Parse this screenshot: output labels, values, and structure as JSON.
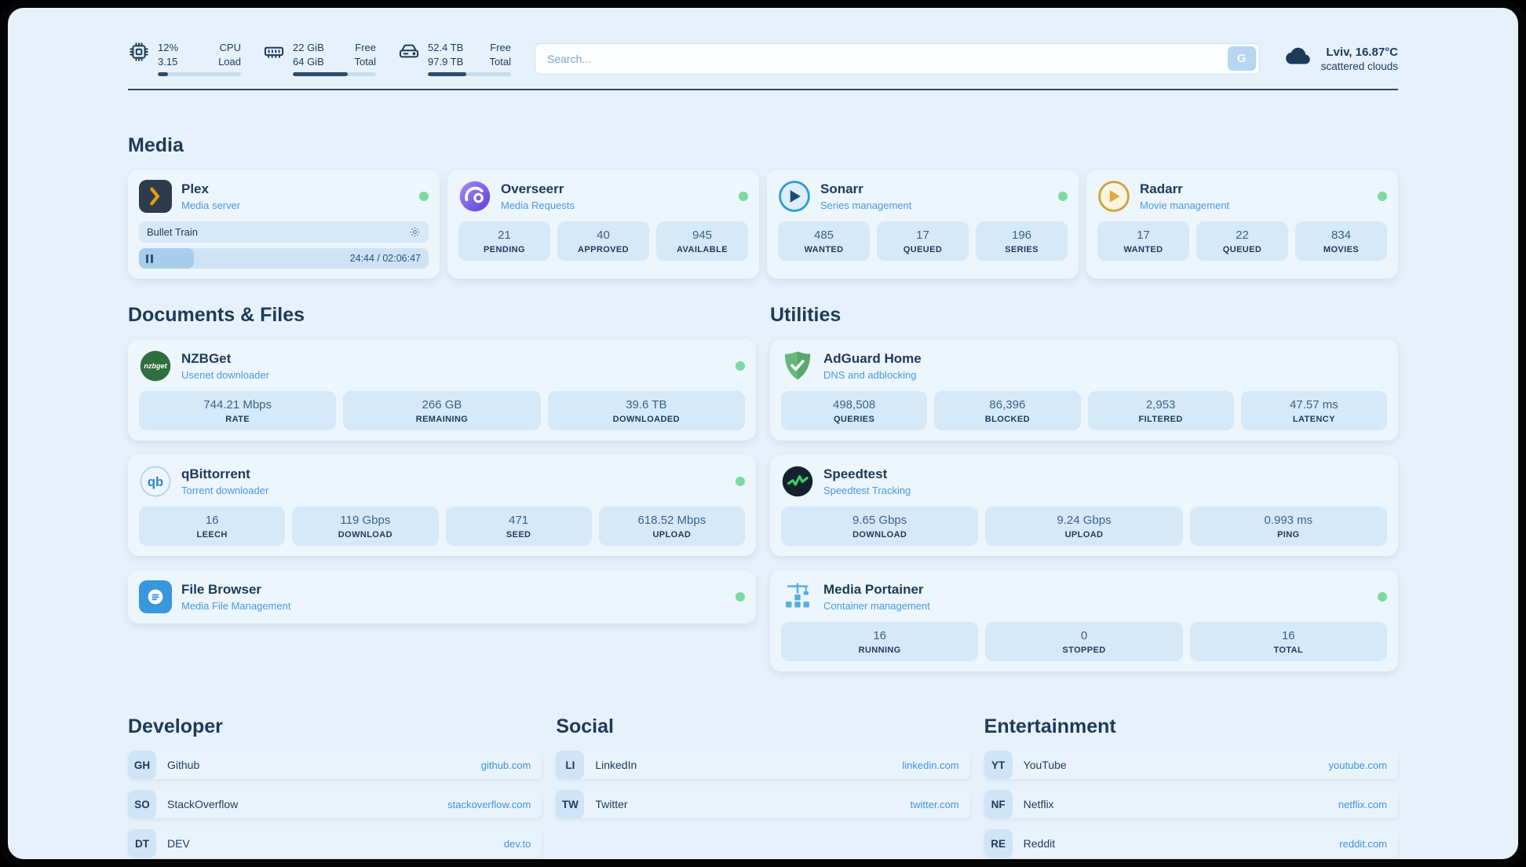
{
  "topbar": {
    "stats": [
      {
        "icon": "cpu",
        "values": [
          "12%",
          "3.15"
        ],
        "labels": [
          "CPU",
          "Load"
        ],
        "progress": 12
      },
      {
        "icon": "ram",
        "values": [
          "22 GiB",
          "64 GiB"
        ],
        "labels": [
          "Free",
          "Total"
        ],
        "progress": 66
      },
      {
        "icon": "disk",
        "values": [
          "52.4 TB",
          "97.9 TB"
        ],
        "labels": [
          "Free",
          "Total"
        ],
        "progress": 46
      }
    ],
    "search": {
      "placeholder": "Search...",
      "button_label": "G"
    },
    "weather": {
      "location": "Lviv, 16.87°C",
      "condition": "scattered clouds"
    }
  },
  "sections": {
    "media": {
      "title": "Media",
      "apps": [
        {
          "name": "Plex",
          "subtitle": "Media server",
          "player": {
            "title": "Bullet Train",
            "time": "24:44 / 02:06:47",
            "progress": 19
          }
        },
        {
          "name": "Overseerr",
          "subtitle": "Media Requests",
          "stats": [
            {
              "value": "21",
              "label": "PENDING"
            },
            {
              "value": "40",
              "label": "APPROVED"
            },
            {
              "value": "945",
              "label": "AVAILABLE"
            }
          ]
        },
        {
          "name": "Sonarr",
          "subtitle": "Series management",
          "stats": [
            {
              "value": "485",
              "label": "WANTED"
            },
            {
              "value": "17",
              "label": "QUEUED"
            },
            {
              "value": "196",
              "label": "SERIES"
            }
          ]
        },
        {
          "name": "Radarr",
          "subtitle": "Movie management",
          "stats": [
            {
              "value": "17",
              "label": "WANTED"
            },
            {
              "value": "22",
              "label": "QUEUED"
            },
            {
              "value": "834",
              "label": "MOVIES"
            }
          ]
        }
      ]
    },
    "documents": {
      "title": "Documents & Files",
      "apps": [
        {
          "name": "NZBGet",
          "subtitle": "Usenet downloader",
          "stats": [
            {
              "value": "744.21 Mbps",
              "label": "RATE"
            },
            {
              "value": "266 GB",
              "label": "REMAINING"
            },
            {
              "value": "39.6 TB",
              "label": "DOWNLOADED"
            }
          ]
        },
        {
          "name": "qBittorrent",
          "subtitle": "Torrent downloader",
          "stats": [
            {
              "value": "16",
              "label": "LEECH"
            },
            {
              "value": "119 Gbps",
              "label": "DOWNLOAD"
            },
            {
              "value": "471",
              "label": "SEED"
            },
            {
              "value": "618.52 Mbps",
              "label": "UPLOAD"
            }
          ]
        },
        {
          "name": "File Browser",
          "subtitle": "Media File Management"
        }
      ]
    },
    "utilities": {
      "title": "Utilities",
      "apps": [
        {
          "name": "AdGuard Home",
          "subtitle": "DNS and adblocking",
          "stats": [
            {
              "value": "498,508",
              "label": "QUERIES"
            },
            {
              "value": "86,396",
              "label": "BLOCKED"
            },
            {
              "value": "2,953",
              "label": "FILTERED"
            },
            {
              "value": "47.57 ms",
              "label": "LATENCY"
            }
          ]
        },
        {
          "name": "Speedtest",
          "subtitle": "Speedtest Tracking",
          "stats": [
            {
              "value": "9.65 Gbps",
              "label": "DOWNLOAD"
            },
            {
              "value": "9.24 Gbps",
              "label": "UPLOAD"
            },
            {
              "value": "0.993 ms",
              "label": "PING"
            }
          ]
        },
        {
          "name": "Media Portainer",
          "subtitle": "Container management",
          "stats": [
            {
              "value": "16",
              "label": "RUNNING"
            },
            {
              "value": "0",
              "label": "STOPPED"
            },
            {
              "value": "16",
              "label": "TOTAL"
            }
          ]
        }
      ]
    },
    "bookmarks": [
      {
        "title": "Developer",
        "links": [
          {
            "abbr": "GH",
            "name": "Github",
            "url": "github.com"
          },
          {
            "abbr": "SO",
            "name": "StackOverflow",
            "url": "stackoverflow.com"
          },
          {
            "abbr": "DT",
            "name": "DEV",
            "url": "dev.to"
          }
        ]
      },
      {
        "title": "Social",
        "links": [
          {
            "abbr": "LI",
            "name": "LinkedIn",
            "url": "linkedin.com"
          },
          {
            "abbr": "TW",
            "name": "Twitter",
            "url": "twitter.com"
          }
        ]
      },
      {
        "title": "Entertainment",
        "links": [
          {
            "abbr": "YT",
            "name": "YouTube",
            "url": "youtube.com"
          },
          {
            "abbr": "NF",
            "name": "Netflix",
            "url": "netflix.com"
          },
          {
            "abbr": "RE",
            "name": "Reddit",
            "url": "reddit.com"
          }
        ]
      }
    ]
  },
  "colors": {
    "accent": "#4a99de",
    "status_ok": "#7cd9a1",
    "navy": "#1e3a58"
  }
}
